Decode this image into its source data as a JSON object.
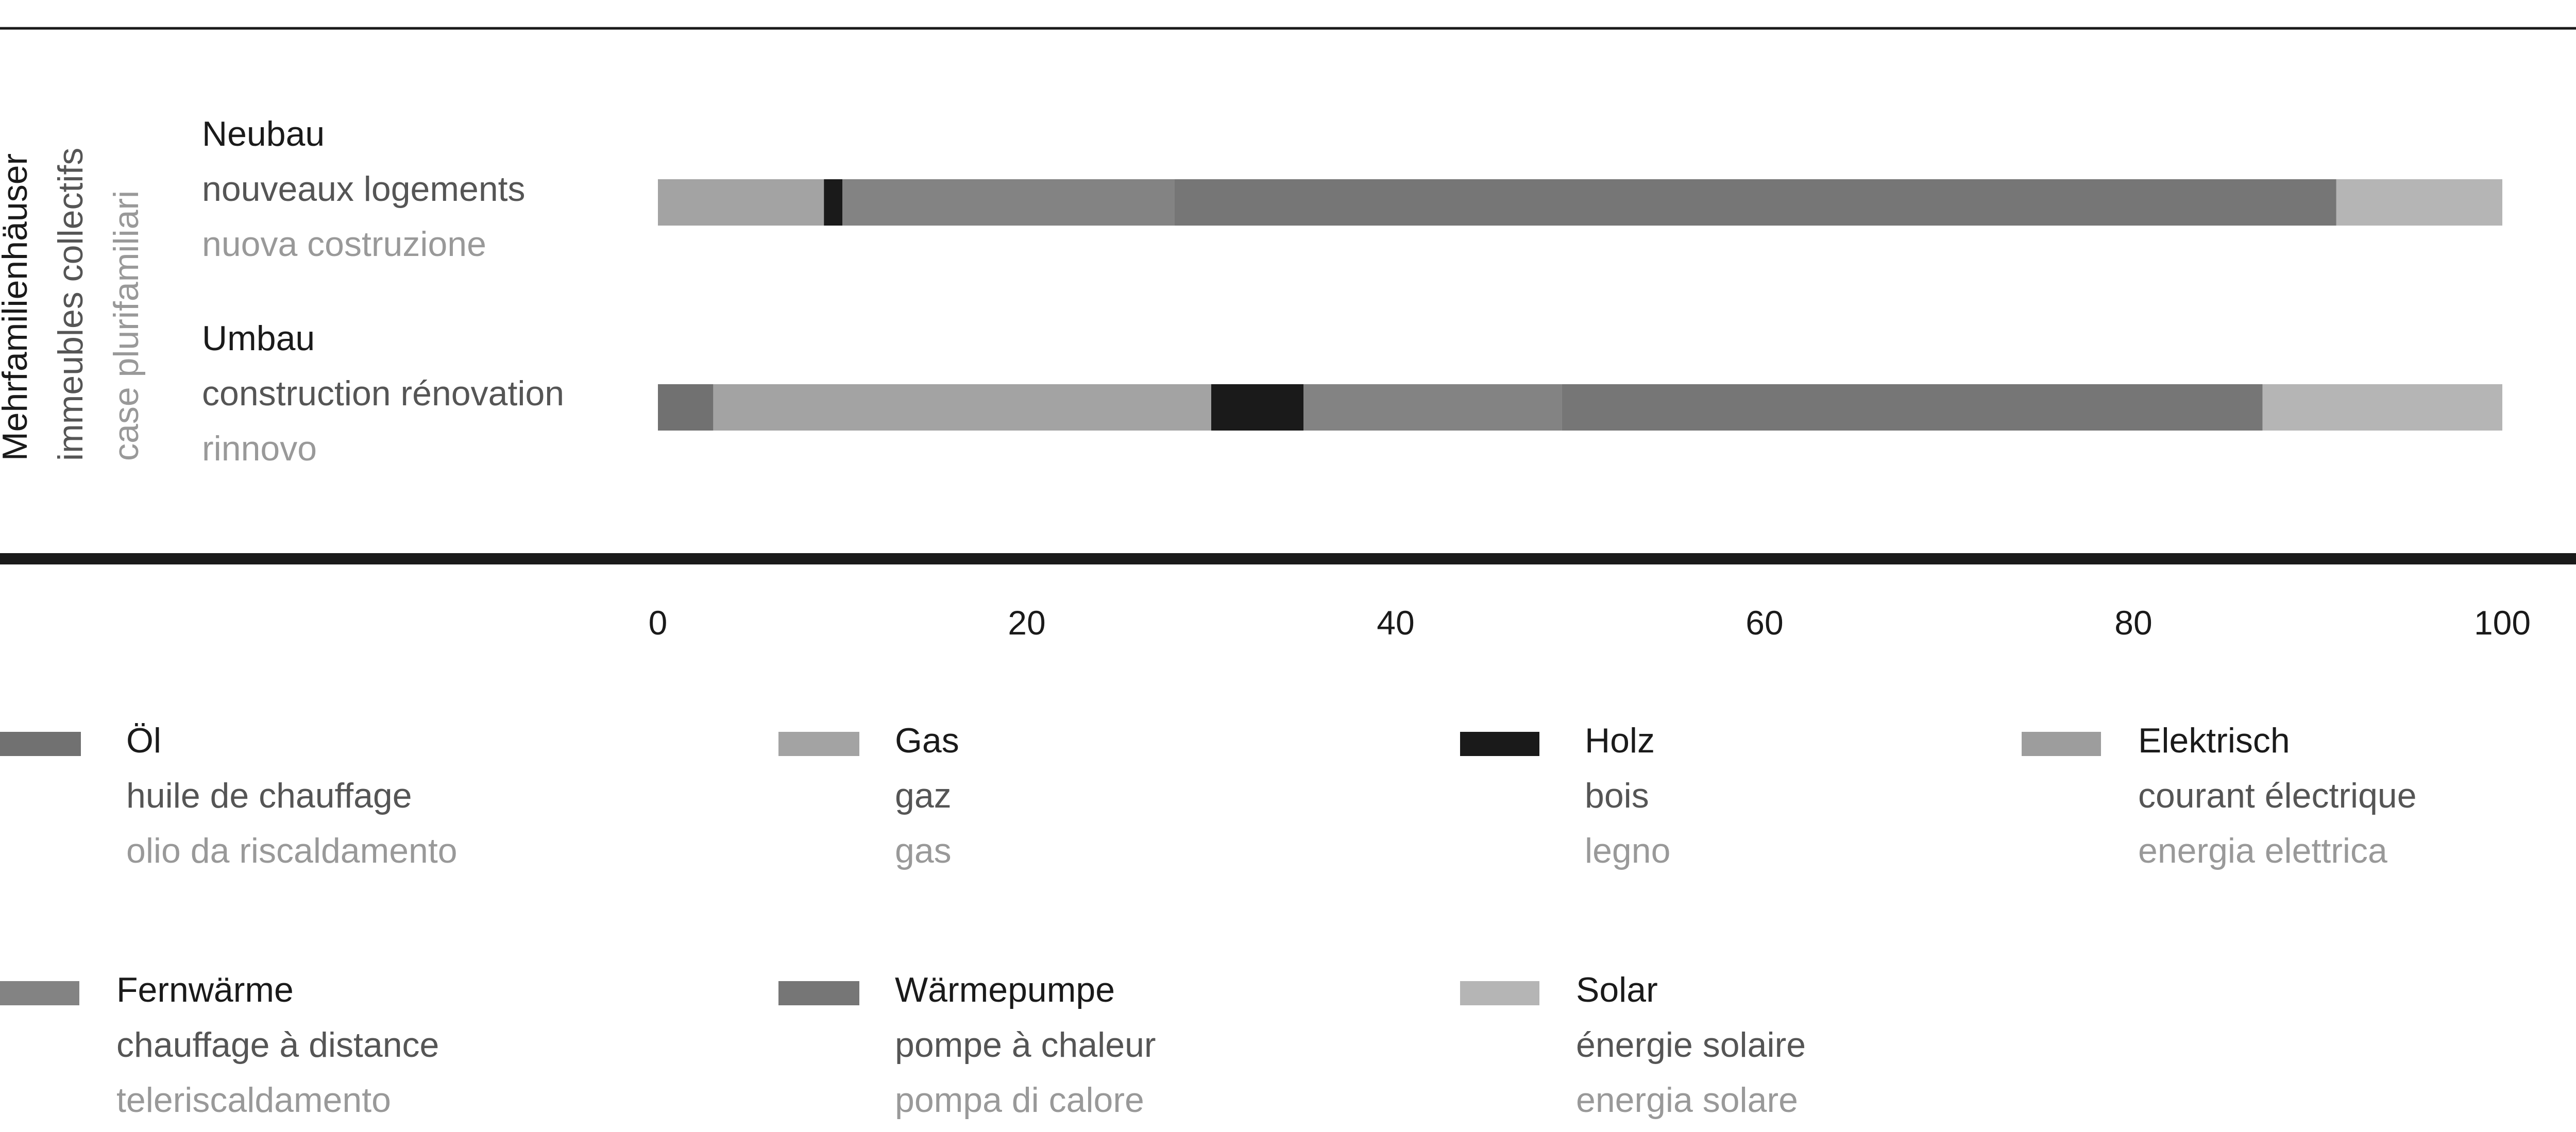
{
  "chart_data": {
    "type": "bar",
    "orientation": "horizontal",
    "stacked": true,
    "group_label": {
      "de": "Mehrfamilienhäuser",
      "fr": "immeubles collectifs",
      "it": "case plurifamiliari"
    },
    "categories": [
      {
        "de": "Neubau",
        "fr": "nouveaux logements",
        "it": "nuova costruzione"
      },
      {
        "de": "Umbau",
        "fr": "construction rénovation",
        "it": "rinnovo"
      }
    ],
    "series": [
      {
        "name": {
          "de": "Öl",
          "fr": "huile de chauffage",
          "it": "olio da riscaldamento"
        },
        "color": "#717171",
        "values": [
          0,
          3
        ]
      },
      {
        "name": {
          "de": "Gas",
          "fr": "gaz",
          "it": "gas"
        },
        "color": "#a3a3a3",
        "values": [
          9,
          27
        ]
      },
      {
        "name": {
          "de": "Holz",
          "fr": "bois",
          "it": "legno"
        },
        "color": "#1a1a1a",
        "values": [
          1,
          5
        ]
      },
      {
        "name": {
          "de": "Elektrisch",
          "fr": "courant électrique",
          "it": "energia elettrica"
        },
        "color": "#9d9d9d",
        "values": [
          0,
          0
        ]
      },
      {
        "name": {
          "de": "Fernwärme",
          "fr": "chauffage à distance",
          "it": "teleriscaldamento"
        },
        "color": "#838383",
        "values": [
          18,
          14
        ]
      },
      {
        "name": {
          "de": "Wärmepumpe",
          "fr": "pompe à chaleur",
          "it": "pompa di calore"
        },
        "color": "#767676",
        "values": [
          63,
          38
        ]
      },
      {
        "name": {
          "de": "Solar",
          "fr": "énergie solaire",
          "it": "energia solare"
        },
        "color": "#b5b5b5",
        "values": [
          9,
          13
        ]
      }
    ],
    "x_ticks": [
      "0",
      "20",
      "40",
      "60",
      "80",
      "100"
    ],
    "xlim": [
      0,
      100
    ],
    "grid": false,
    "legend_position": "bottom"
  }
}
